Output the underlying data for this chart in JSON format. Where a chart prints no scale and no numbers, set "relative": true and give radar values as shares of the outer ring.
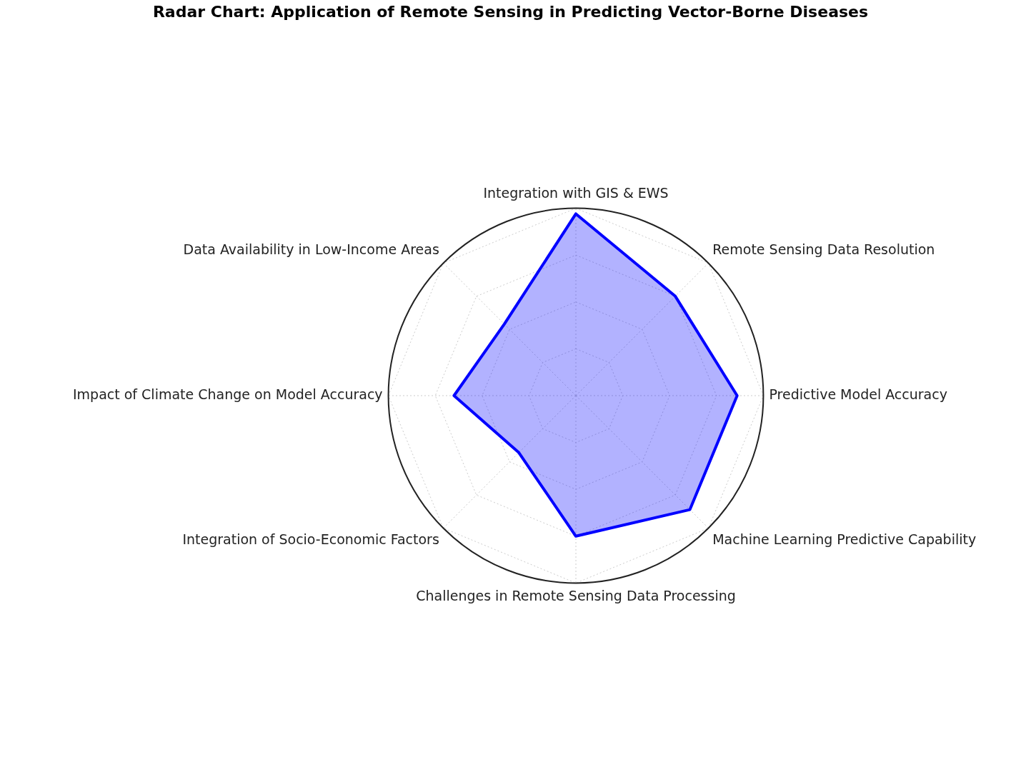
{
  "chart_data": {
    "type": "radar",
    "title": "Radar Chart: Application of Remote Sensing in Predicting Vector-Borne Diseases",
    "categories": [
      "Integration with GIS & EWS",
      "Remote Sensing Data Resolution",
      "Predictive Model Accuracy",
      "Machine Learning Predictive Capability",
      "Challenges in Remote Sensing Data Processing",
      "Integration of Socio-Economic Factors",
      "Impact of Climate Change on Model Accuracy",
      "Data Availability in Low-Income Areas"
    ],
    "series": [
      {
        "color": "#0000ff",
        "values": [
          0.97,
          0.75,
          0.86,
          0.86,
          0.75,
          0.43,
          0.65,
          0.54
        ]
      }
    ],
    "relative": true,
    "grid": true
  }
}
